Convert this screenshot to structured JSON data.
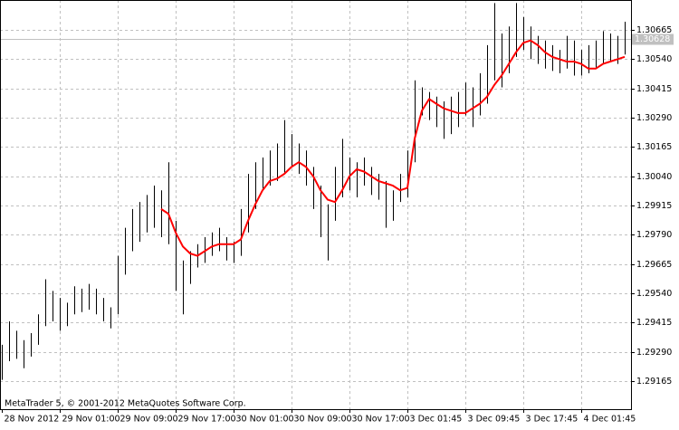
{
  "chart_data": {
    "type": "ohlc",
    "annotation": "MetaTrader 5, © 2001-2012 MetaQuotes Software Corp.",
    "categories": [
      "28 Nov 2012",
      null,
      null,
      null,
      null,
      null,
      null,
      null,
      "29 Nov 01:00",
      null,
      null,
      null,
      null,
      null,
      null,
      null,
      "29 Nov 09:00",
      null,
      null,
      null,
      null,
      null,
      null,
      null,
      "29 Nov 17:00",
      null,
      null,
      null,
      null,
      null,
      null,
      null,
      "30 Nov 01:00",
      null,
      null,
      null,
      null,
      null,
      null,
      null,
      "30 Nov 09:00",
      null,
      null,
      null,
      null,
      null,
      null,
      null,
      "30 Nov 17:00",
      null,
      null,
      null,
      null,
      null,
      null,
      null,
      "3 Dec 01:45",
      null,
      null,
      null,
      null,
      null,
      null,
      null,
      "3 Dec 09:45",
      null,
      null,
      null,
      null,
      null,
      null,
      null,
      "3 Dec 17:45",
      null,
      null,
      null,
      null,
      null,
      null,
      null,
      "4 Dec 01:45",
      null,
      null,
      null,
      null,
      null,
      null
    ],
    "high": [
      1.2932,
      1.2942,
      1.2938,
      1.2934,
      1.2937,
      1.2945,
      1.296,
      1.2955,
      1.2952,
      1.295,
      1.2957,
      1.2956,
      1.2958,
      1.2956,
      1.2952,
      1.2948,
      1.297,
      1.2982,
      1.299,
      1.2993,
      1.2996,
      1.3,
      1.2998,
      1.301,
      1.2985,
      1.2968,
      1.2972,
      1.2975,
      1.2978,
      1.298,
      1.2982,
      1.2978,
      1.2976,
      1.299,
      1.3005,
      1.301,
      1.3012,
      1.3015,
      1.3018,
      1.3028,
      1.3022,
      1.3018,
      1.3015,
      1.3008,
      1.3,
      1.2992,
      1.3008,
      1.302,
      1.3012,
      1.301,
      1.3012,
      1.3008,
      1.3005,
      1.3002,
      1.2998,
      1.3005,
      1.3015,
      1.3045,
      1.3042,
      1.304,
      1.3038,
      1.3036,
      1.3038,
      1.304,
      1.3044,
      1.3042,
      1.3048,
      1.306,
      1.3078,
      1.3065,
      1.3068,
      1.3078,
      1.3072,
      1.3068,
      1.3064,
      1.3062,
      1.306,
      1.3058,
      1.3064,
      1.3062,
      1.3058,
      1.306,
      1.3062,
      1.3066,
      1.3065,
      1.3064,
      1.307
    ],
    "low": [
      1.2917,
      1.2925,
      1.2926,
      1.2922,
      1.2927,
      1.2932,
      1.294,
      1.2942,
      1.2938,
      1.294,
      1.2945,
      1.2946,
      1.2947,
      1.2945,
      1.2942,
      1.2939,
      1.2945,
      1.2962,
      1.2972,
      1.2976,
      1.298,
      1.2982,
      1.2978,
      1.2975,
      1.2955,
      1.2945,
      1.2958,
      1.2965,
      1.2967,
      1.297,
      1.2972,
      1.2968,
      1.2967,
      1.297,
      1.298,
      1.299,
      1.2998,
      1.3,
      1.3002,
      1.3005,
      1.3008,
      1.3005,
      1.3,
      1.299,
      1.2978,
      1.2968,
      1.2985,
      1.2995,
      1.2998,
      1.2995,
      1.3,
      1.2996,
      1.2994,
      1.2982,
      1.2985,
      1.2993,
      1.2995,
      1.301,
      1.303,
      1.3028,
      1.3025,
      1.302,
      1.3022,
      1.3025,
      1.303,
      1.3025,
      1.303,
      1.3035,
      1.3045,
      1.3042,
      1.3048,
      1.3055,
      1.3058,
      1.3054,
      1.3052,
      1.305,
      1.3049,
      1.3048,
      1.305,
      1.3047,
      1.3047,
      1.3048,
      1.305,
      1.3052,
      1.3053,
      1.3052,
      1.3056
    ],
    "color": "#000000",
    "ma": {
      "color": "#ff0000",
      "values": [
        null,
        null,
        null,
        null,
        null,
        null,
        null,
        null,
        null,
        null,
        null,
        null,
        null,
        null,
        null,
        null,
        null,
        null,
        null,
        null,
        null,
        null,
        1.299,
        1.2988,
        1.298,
        1.2974,
        1.2971,
        1.297,
        1.2972,
        1.2974,
        1.2975,
        1.2975,
        1.2975,
        1.2977,
        1.2985,
        1.2992,
        1.2998,
        1.3002,
        1.3003,
        1.3005,
        1.3008,
        1.301,
        1.3008,
        1.3004,
        1.2998,
        1.2994,
        1.2993,
        1.2998,
        1.3004,
        1.3007,
        1.3006,
        1.3004,
        1.3002,
        1.3001,
        1.3,
        1.2998,
        1.2999,
        1.302,
        1.3032,
        1.3037,
        1.3035,
        1.3033,
        1.3032,
        1.3031,
        1.3031,
        1.3033,
        1.3035,
        1.3038,
        1.3043,
        1.3047,
        1.3052,
        1.3057,
        1.3061,
        1.3062,
        1.306,
        1.3057,
        1.3055,
        1.3054,
        1.3053,
        1.3053,
        1.3052,
        1.305,
        1.305,
        1.3052,
        1.3053,
        1.3054,
        1.3055
      ]
    },
    "current_price": 1.30628,
    "ylim": [
      1.29045,
      1.30793
    ],
    "yticks": [
      1.30665,
      {
        "value": 1.3054,
        "label": "1.30540"
      },
      1.30415,
      {
        "value": 1.3029,
        "label": "1.30290"
      },
      1.30165,
      {
        "value": 1.3004,
        "label": "1.30040"
      },
      1.29915,
      {
        "value": 1.2979,
        "label": "1.29790"
      },
      1.29665,
      {
        "value": 1.2954,
        "label": "1.29540"
      },
      1.29415,
      {
        "value": 1.2929,
        "label": "1.29290"
      },
      1.29165
    ],
    "grid": true
  }
}
